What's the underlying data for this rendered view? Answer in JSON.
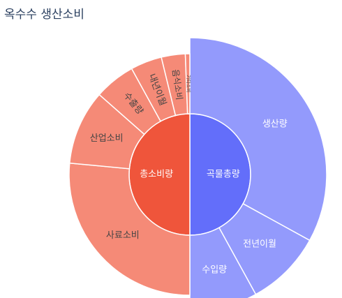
{
  "chart_data": {
    "type": "sunburst",
    "title": "옥수수 생산소비",
    "colors": {
      "total_supply": "#636efa",
      "supply_children": "#939afc",
      "total_consumption": "#ef553b",
      "consumption_children": "#f58a77"
    },
    "nodes": [
      {
        "label": "곡물총량",
        "value": 50,
        "color_key": "total_supply",
        "children": [
          {
            "label": "생산량",
            "value": 33,
            "color_key": "supply_children"
          },
          {
            "label": "전년이월",
            "value": 9,
            "color_key": "supply_children"
          },
          {
            "label": "수입량",
            "value": 8,
            "color_key": "supply_children"
          }
        ]
      },
      {
        "label": "총소비량",
        "value": 50,
        "color_key": "total_consumption",
        "children": [
          {
            "label": "사료소비",
            "value": 26.5,
            "color_key": "consumption_children"
          },
          {
            "label": "산업소비",
            "value": 10,
            "color_key": "consumption_children"
          },
          {
            "label": "수출량",
            "value": 5.5,
            "color_key": "consumption_children"
          },
          {
            "label": "내년이월",
            "value": 4.2,
            "color_key": "consumption_children"
          },
          {
            "label": "음식소비",
            "value": 3.2,
            "color_key": "consumption_children"
          },
          {
            "label": "기타소비",
            "value": 0.6,
            "color_key": "consumption_children"
          }
        ]
      }
    ]
  }
}
